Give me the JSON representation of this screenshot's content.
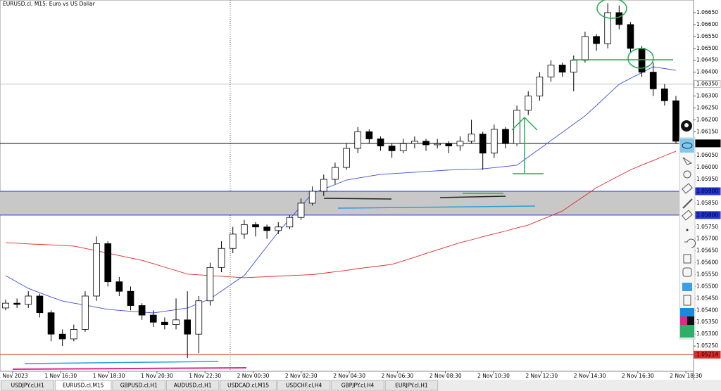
{
  "window": {
    "title": "EURUSD.cl, M15: Euro vs US Dollar",
    "tabs": [
      "USDJPY.cl,H1",
      "EURUSD.cl,M15",
      "GBPUSD.cl,H1",
      "AUDUSD.cl,H1",
      "USDCAD.cl,M15",
      "USDCHF.cl,H4",
      "GBPJPY.cl,H4",
      "EURJPY.cl,H1"
    ],
    "active_tab": 1
  },
  "chart_data": {
    "type": "candlestick",
    "up_color": "#ffffff",
    "down_color": "#000000",
    "candles": [
      [
        1.0541,
        1.05445,
        1.054,
        1.0543
      ],
      [
        1.0543,
        1.0545,
        1.0541,
        1.05425
      ],
      [
        1.05425,
        1.0548,
        1.0541,
        1.0546
      ],
      [
        1.0546,
        1.0547,
        1.0537,
        1.0539
      ],
      [
        1.0539,
        1.054,
        1.0527,
        1.053
      ],
      [
        1.053,
        1.0532,
        1.0525,
        1.0528
      ],
      [
        1.0528,
        1.0534,
        1.0527,
        1.0532
      ],
      [
        1.0532,
        1.0548,
        1.0531,
        1.0546
      ],
      [
        1.0546,
        1.0571,
        1.0544,
        1.0568
      ],
      [
        1.0568,
        1.0569,
        1.055,
        1.0552
      ],
      [
        1.0552,
        1.0554,
        1.0546,
        1.0548
      ],
      [
        1.0548,
        1.055,
        1.054,
        1.0542
      ],
      [
        1.0542,
        1.0543,
        1.0536,
        1.0538
      ],
      [
        1.0538,
        1.054,
        1.0533,
        1.0535
      ],
      [
        1.0535,
        1.0537,
        1.0532,
        1.0534
      ],
      [
        1.0534,
        1.0545,
        1.0532,
        1.0536
      ],
      [
        1.0536,
        1.0548,
        1.052,
        1.053
      ],
      [
        1.053,
        1.0546,
        1.0522,
        1.0544
      ],
      [
        1.0544,
        1.056,
        1.0542,
        1.0558
      ],
      [
        1.0558,
        1.0569,
        1.0556,
        1.0566
      ],
      [
        1.0566,
        1.0575,
        1.0564,
        1.0572
      ],
      [
        1.0572,
        1.0578,
        1.057,
        1.0576
      ],
      [
        1.0576,
        1.0577,
        1.0571,
        1.0575
      ],
      [
        1.0575,
        1.0576,
        1.057,
        1.05735
      ],
      [
        1.05735,
        1.0577,
        1.0572,
        1.0575
      ],
      [
        1.0575,
        1.058,
        1.0574,
        1.0579
      ],
      [
        1.0579,
        1.0587,
        1.0578,
        1.0585
      ],
      [
        1.0585,
        1.0592,
        1.0584,
        1.059
      ],
      [
        1.059,
        1.0597,
        1.0588,
        1.0595
      ],
      [
        1.0595,
        1.0602,
        1.0593,
        1.06
      ],
      [
        1.06,
        1.061,
        1.0599,
        1.0608
      ],
      [
        1.0608,
        1.0617,
        1.0606,
        1.0615
      ],
      [
        1.0615,
        1.0616,
        1.061,
        1.0612
      ],
      [
        1.0612,
        1.0613,
        1.0607,
        1.0609
      ],
      [
        1.0609,
        1.061,
        1.0604,
        1.0607
      ],
      [
        1.0607,
        1.0612,
        1.0606,
        1.061
      ],
      [
        1.061,
        1.0613,
        1.0608,
        1.0611
      ],
      [
        1.0611,
        1.0612,
        1.0607,
        1.06095
      ],
      [
        1.06095,
        1.0612,
        1.0608,
        1.061
      ],
      [
        1.061,
        1.0611,
        1.0606,
        1.0609
      ],
      [
        1.0609,
        1.0613,
        1.0607,
        1.0611
      ],
      [
        1.0611,
        1.062,
        1.061,
        1.0614
      ],
      [
        1.0614,
        1.0615,
        1.0599,
        1.0606
      ],
      [
        1.0606,
        1.0618,
        1.0604,
        1.0616
      ],
      [
        1.0616,
        1.0617,
        1.0608,
        1.061
      ],
      [
        1.061,
        1.0626,
        1.0609,
        1.0624
      ],
      [
        1.0624,
        1.0632,
        1.0622,
        1.063
      ],
      [
        1.063,
        1.064,
        1.0628,
        1.0638
      ],
      [
        1.0638,
        1.0645,
        1.0636,
        1.0643
      ],
      [
        1.0643,
        1.0644,
        1.0638,
        1.064
      ],
      [
        1.064,
        1.0647,
        1.0632,
        1.0645
      ],
      [
        1.0645,
        1.0657,
        1.0644,
        1.0655
      ],
      [
        1.0655,
        1.0656,
        1.0649,
        1.0652
      ],
      [
        1.0652,
        1.0669,
        1.065,
        1.0665
      ],
      [
        1.0665,
        1.0668,
        1.0658,
        1.066
      ],
      [
        1.066,
        1.0661,
        1.0648,
        1.065
      ],
      [
        1.065,
        1.0651,
        1.0638,
        1.064
      ],
      [
        1.064,
        1.0644,
        1.063,
        1.0633
      ],
      [
        1.0633,
        1.0635,
        1.0626,
        1.0628
      ],
      [
        1.0628,
        1.063,
        1.061,
        1.0611
      ]
    ],
    "ma_lines": [
      {
        "color": "#3a4de0",
        "values": [
          1.05546,
          1.05519,
          1.05492,
          1.05474,
          1.05456,
          1.05439,
          1.0543,
          1.05422,
          1.05413,
          1.05404,
          1.054,
          1.05396,
          1.05393,
          1.05389,
          1.05396,
          1.05403,
          1.0541,
          1.05429,
          1.05448,
          1.05481,
          1.05514,
          1.05546,
          1.05607,
          1.05668,
          1.05729,
          1.05783,
          1.05837,
          1.05891,
          1.0591,
          1.05928,
          1.05947,
          1.05955,
          1.05963,
          1.05971,
          1.05974,
          1.05977,
          1.0598,
          1.05983,
          1.05986,
          1.05989,
          1.05991,
          1.05992,
          1.05994,
          1.05999,
          1.06004,
          1.06009,
          1.06044,
          1.06078,
          1.06113,
          1.06147,
          1.06182,
          1.06216,
          1.0626,
          1.06305,
          1.06349,
          1.06374,
          1.06398,
          1.06423,
          1.06415,
          1.06408
        ]
      },
      {
        "color": "#e02a2a",
        "values": [
          1.05684,
          1.05682,
          1.05679,
          1.05677,
          1.05675,
          1.05672,
          1.0567,
          1.0566,
          1.0565,
          1.0564,
          1.0563,
          1.0562,
          1.0561,
          1.05596,
          1.05581,
          1.05567,
          1.05552,
          1.05549,
          1.05546,
          1.05543,
          1.0554,
          1.05537,
          1.05539,
          1.05541,
          1.05544,
          1.05546,
          1.05548,
          1.0555,
          1.05556,
          1.05562,
          1.05568,
          1.05575,
          1.05581,
          1.05587,
          1.05593,
          1.05608,
          1.05623,
          1.05639,
          1.05654,
          1.05669,
          1.05684,
          1.05696,
          1.05709,
          1.05721,
          1.05733,
          1.05746,
          1.05758,
          1.05778,
          1.05797,
          1.05817,
          1.0585,
          1.05882,
          1.05915,
          1.0594,
          1.05965,
          1.0599,
          1.0601,
          1.06029,
          1.06049,
          1.06068
        ]
      }
    ],
    "ylim": [
      1.05144,
      1.06703
    ],
    "yticks": [
      {
        "value": 1.0665,
        "label": "1.06650"
      },
      {
        "value": 1.066,
        "label": "1.06600"
      },
      {
        "value": 1.0655,
        "label": "1.06550"
      },
      {
        "value": 1.065,
        "label": "1.06500"
      },
      {
        "value": 1.0645,
        "label": "1.06450"
      },
      {
        "value": 1.064,
        "label": "1.06400"
      },
      {
        "value": 1.0635,
        "label": "1.06350"
      },
      {
        "value": 1.063,
        "label": "1.06300"
      },
      {
        "value": 1.0625,
        "label": "1.06250"
      },
      {
        "value": 1.062,
        "label": "1.06200"
      },
      {
        "value": 1.0615,
        "label": "1.06150"
      },
      {
        "value": 1.061,
        "label": "1.06100"
      },
      {
        "value": 1.0605,
        "label": "1.06050"
      },
      {
        "value": 1.06,
        "label": "1.06000"
      },
      {
        "value": 1.0595,
        "label": "1.05950"
      },
      {
        "value": 1.059,
        "label": "1.05900"
      },
      {
        "value": 1.0585,
        "label": "1.05850"
      },
      {
        "value": 1.058,
        "label": "1.05800"
      },
      {
        "value": 1.0575,
        "label": "1.05750"
      },
      {
        "value": 1.057,
        "label": "1.05700"
      },
      {
        "value": 1.0565,
        "label": "1.05650"
      },
      {
        "value": 1.056,
        "label": "1.05600"
      },
      {
        "value": 1.0555,
        "label": "1.05550"
      },
      {
        "value": 1.055,
        "label": "1.05500"
      },
      {
        "value": 1.0545,
        "label": "1.05450"
      },
      {
        "value": 1.054,
        "label": "1.05400"
      },
      {
        "value": 1.0535,
        "label": "1.05350"
      },
      {
        "value": 1.053,
        "label": "1.05300"
      },
      {
        "value": 1.0525,
        "label": "1.05250"
      }
    ],
    "price_lines": [
      {
        "value": 1.0635,
        "label": "1.06350",
        "color": "#bbbbbb"
      },
      {
        "value": 1.06101,
        "label": "1.06101",
        "color": "#000000"
      },
      {
        "value": 1.059,
        "label": "1.05900",
        "color": "#2233dd"
      },
      {
        "value": 1.058,
        "label": "1.05800",
        "color": "#2233dd"
      },
      {
        "value": 1.05214,
        "label": "1.05214",
        "color": "#e02a2a"
      }
    ],
    "x_labels": [
      "1 Nov 2023",
      "1 Nov 16:30",
      "1 Nov 18:30",
      "1 Nov 20:30",
      "1 Nov 22:30",
      "2 Nov 00:30",
      "2 Nov 02:30",
      "2 Nov 04:30",
      "2 Nov 06:30",
      "2 Nov 08:30",
      "2 Nov 10:30",
      "2 Nov 12:30",
      "2 Nov 14:30",
      "2 Nov 16:30",
      "2 Nov 18:30"
    ]
  }
}
